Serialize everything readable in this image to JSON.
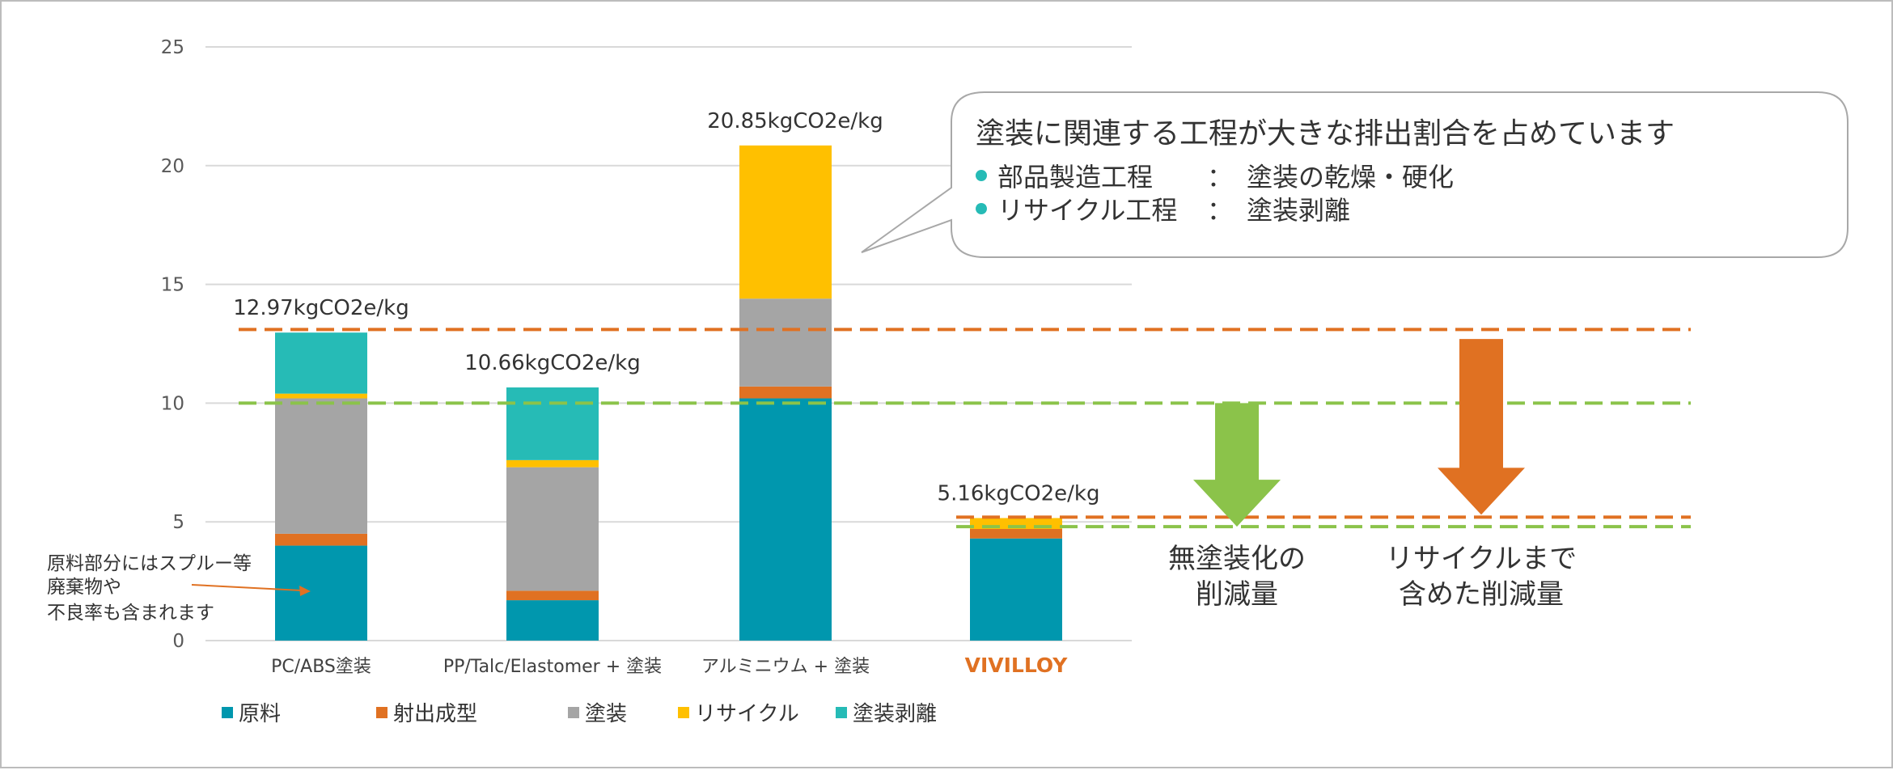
{
  "chart_data": {
    "type": "bar",
    "stacked": true,
    "ylim": [
      0,
      25
    ],
    "yticks": [
      0,
      5,
      10,
      15,
      20,
      25
    ],
    "grid": true,
    "legend_position": "bottom",
    "categories": [
      "PC/ABS塗装",
      "PP/Talc/Elastomer + 塗装",
      "アルミニウム + 塗装",
      "VIVILLOY"
    ],
    "category_colors": [
      "#404040",
      "#404040",
      "#404040",
      "#E07122"
    ],
    "series": [
      {
        "name": "原料",
        "color": "#0097AE",
        "values": [
          4.0,
          1.7,
          10.2,
          4.3
        ]
      },
      {
        "name": "射出成型",
        "color": "#E07122",
        "values": [
          0.5,
          0.4,
          0.5,
          0.4
        ]
      },
      {
        "name": "塗装",
        "color": "#A5A5A5",
        "values": [
          5.7,
          5.2,
          3.7,
          0
        ]
      },
      {
        "name": "リサイクル",
        "color": "#FFC000",
        "values": [
          0.2,
          0.3,
          6.45,
          0.46
        ]
      },
      {
        "name": "塗装剥離",
        "color": "#26BBB6",
        "values": [
          2.57,
          3.06,
          0,
          0
        ]
      }
    ],
    "totals": [
      "12.97kgCO2e/kg",
      "10.66kgCO2e/kg",
      "20.85kgCO2e/kg",
      "5.16kgCO2e/kg"
    ],
    "reference_lines": [
      {
        "value": 13.1,
        "color": "#E07122"
      },
      {
        "value": 10.0,
        "color": "#8BC34A"
      },
      {
        "value": 5.2,
        "color": "#E07122"
      },
      {
        "value": 4.8,
        "color": "#8BC34A"
      }
    ],
    "arrows": [
      {
        "from": 10.0,
        "to": 4.8,
        "color": "#8BC34A",
        "label_lines": [
          "無塗装化の",
          "削減量"
        ]
      },
      {
        "from": 12.7,
        "to": 5.3,
        "color": "#E07122",
        "label_lines": [
          "リサイクルまで",
          "含めた削減量"
        ]
      }
    ]
  },
  "callout": {
    "title": "塗装に関連する工程が大きな排出割合を占めています",
    "bullets": [
      {
        "label": "部品製造工程",
        "sep": "：",
        "value": "塗装の乾燥・硬化"
      },
      {
        "label": "リサイクル工程",
        "sep": "：",
        "value": "塗装剥離"
      }
    ],
    "bullet_color": "#26BBB6"
  },
  "annotation": {
    "lines": [
      "原料部分にはスプルー等",
      "廃棄物や",
      "不良率も含まれます"
    ],
    "arrow_color": "#E07122"
  }
}
